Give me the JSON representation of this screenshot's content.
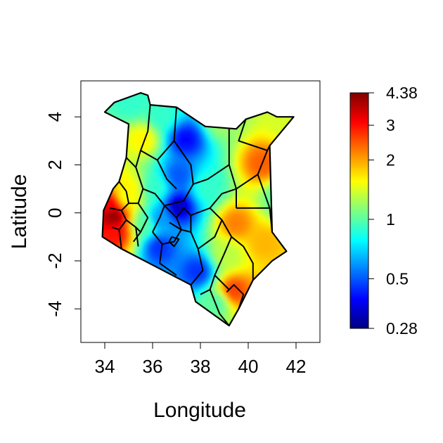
{
  "chart_data": {
    "type": "heatmap",
    "subtype": "choropleth-map",
    "region": "Kenya",
    "xlabel": "Longitude",
    "ylabel": "Latitude",
    "xlim": [
      33,
      43
    ],
    "ylim": [
      -5.4,
      5.5
    ],
    "x_ticks": [
      34,
      36,
      38,
      40,
      42
    ],
    "y_ticks": [
      -4,
      -2,
      0,
      2,
      4
    ],
    "grid": false,
    "colorbar": {
      "position": "right",
      "scale": "log",
      "min": 0.28,
      "max": 4.38,
      "ticks": [
        0.28,
        0.5,
        1,
        2,
        3,
        4.38
      ],
      "tick_labels": [
        "0.28",
        "0.5",
        "1",
        "2",
        "3",
        "4.38"
      ],
      "colors": [
        "#00007f",
        "#0000ff",
        "#007fff",
        "#00ffff",
        "#7fff7f",
        "#ffff00",
        "#ff7f00",
        "#ff0000",
        "#7f0000"
      ]
    },
    "surface_points": [
      {
        "lon": 34.3,
        "lat": -0.2,
        "value": 4.2
      },
      {
        "lon": 34.2,
        "lat": 0.3,
        "value": 3.2
      },
      {
        "lon": 34.4,
        "lat": -0.9,
        "value": 3.0
      },
      {
        "lon": 34.8,
        "lat": 0.6,
        "value": 1.5
      },
      {
        "lon": 34.9,
        "lat": 0.9,
        "value": 1.6
      },
      {
        "lon": 35.5,
        "lat": 3.0,
        "value": 1.6
      },
      {
        "lon": 35.0,
        "lat": 4.5,
        "value": 0.9
      },
      {
        "lon": 36.3,
        "lat": 4.0,
        "value": 0.9
      },
      {
        "lon": 37.3,
        "lat": 3.0,
        "value": 0.4
      },
      {
        "lon": 37.0,
        "lat": 1.5,
        "value": 0.5
      },
      {
        "lon": 37.0,
        "lat": 0.2,
        "value": 0.33
      },
      {
        "lon": 36.2,
        "lat": -0.3,
        "value": 0.6
      },
      {
        "lon": 36.2,
        "lat": -1.5,
        "value": 0.45
      },
      {
        "lon": 37.8,
        "lat": -2.5,
        "value": 0.45
      },
      {
        "lon": 38.6,
        "lat": -3.8,
        "value": 1.0
      },
      {
        "lon": 38.2,
        "lat": 1.0,
        "value": 0.9
      },
      {
        "lon": 38.8,
        "lat": 3.8,
        "value": 1.2
      },
      {
        "lon": 40.5,
        "lat": 2.0,
        "value": 2.4
      },
      {
        "lon": 41.5,
        "lat": 3.8,
        "value": 1.4
      },
      {
        "lon": 39.4,
        "lat": -0.5,
        "value": 2.2
      },
      {
        "lon": 40.6,
        "lat": -1.3,
        "value": 1.9
      },
      {
        "lon": 39.3,
        "lat": -3.3,
        "value": 2.6
      },
      {
        "lon": 39.0,
        "lat": -1.8,
        "value": 1.3
      },
      {
        "lon": 41.2,
        "lat": 0.5,
        "value": 1.0
      },
      {
        "lon": 36.0,
        "lat": 1.0,
        "value": 0.9
      },
      {
        "lon": 35.6,
        "lat": -0.5,
        "value": 1.0
      }
    ]
  }
}
